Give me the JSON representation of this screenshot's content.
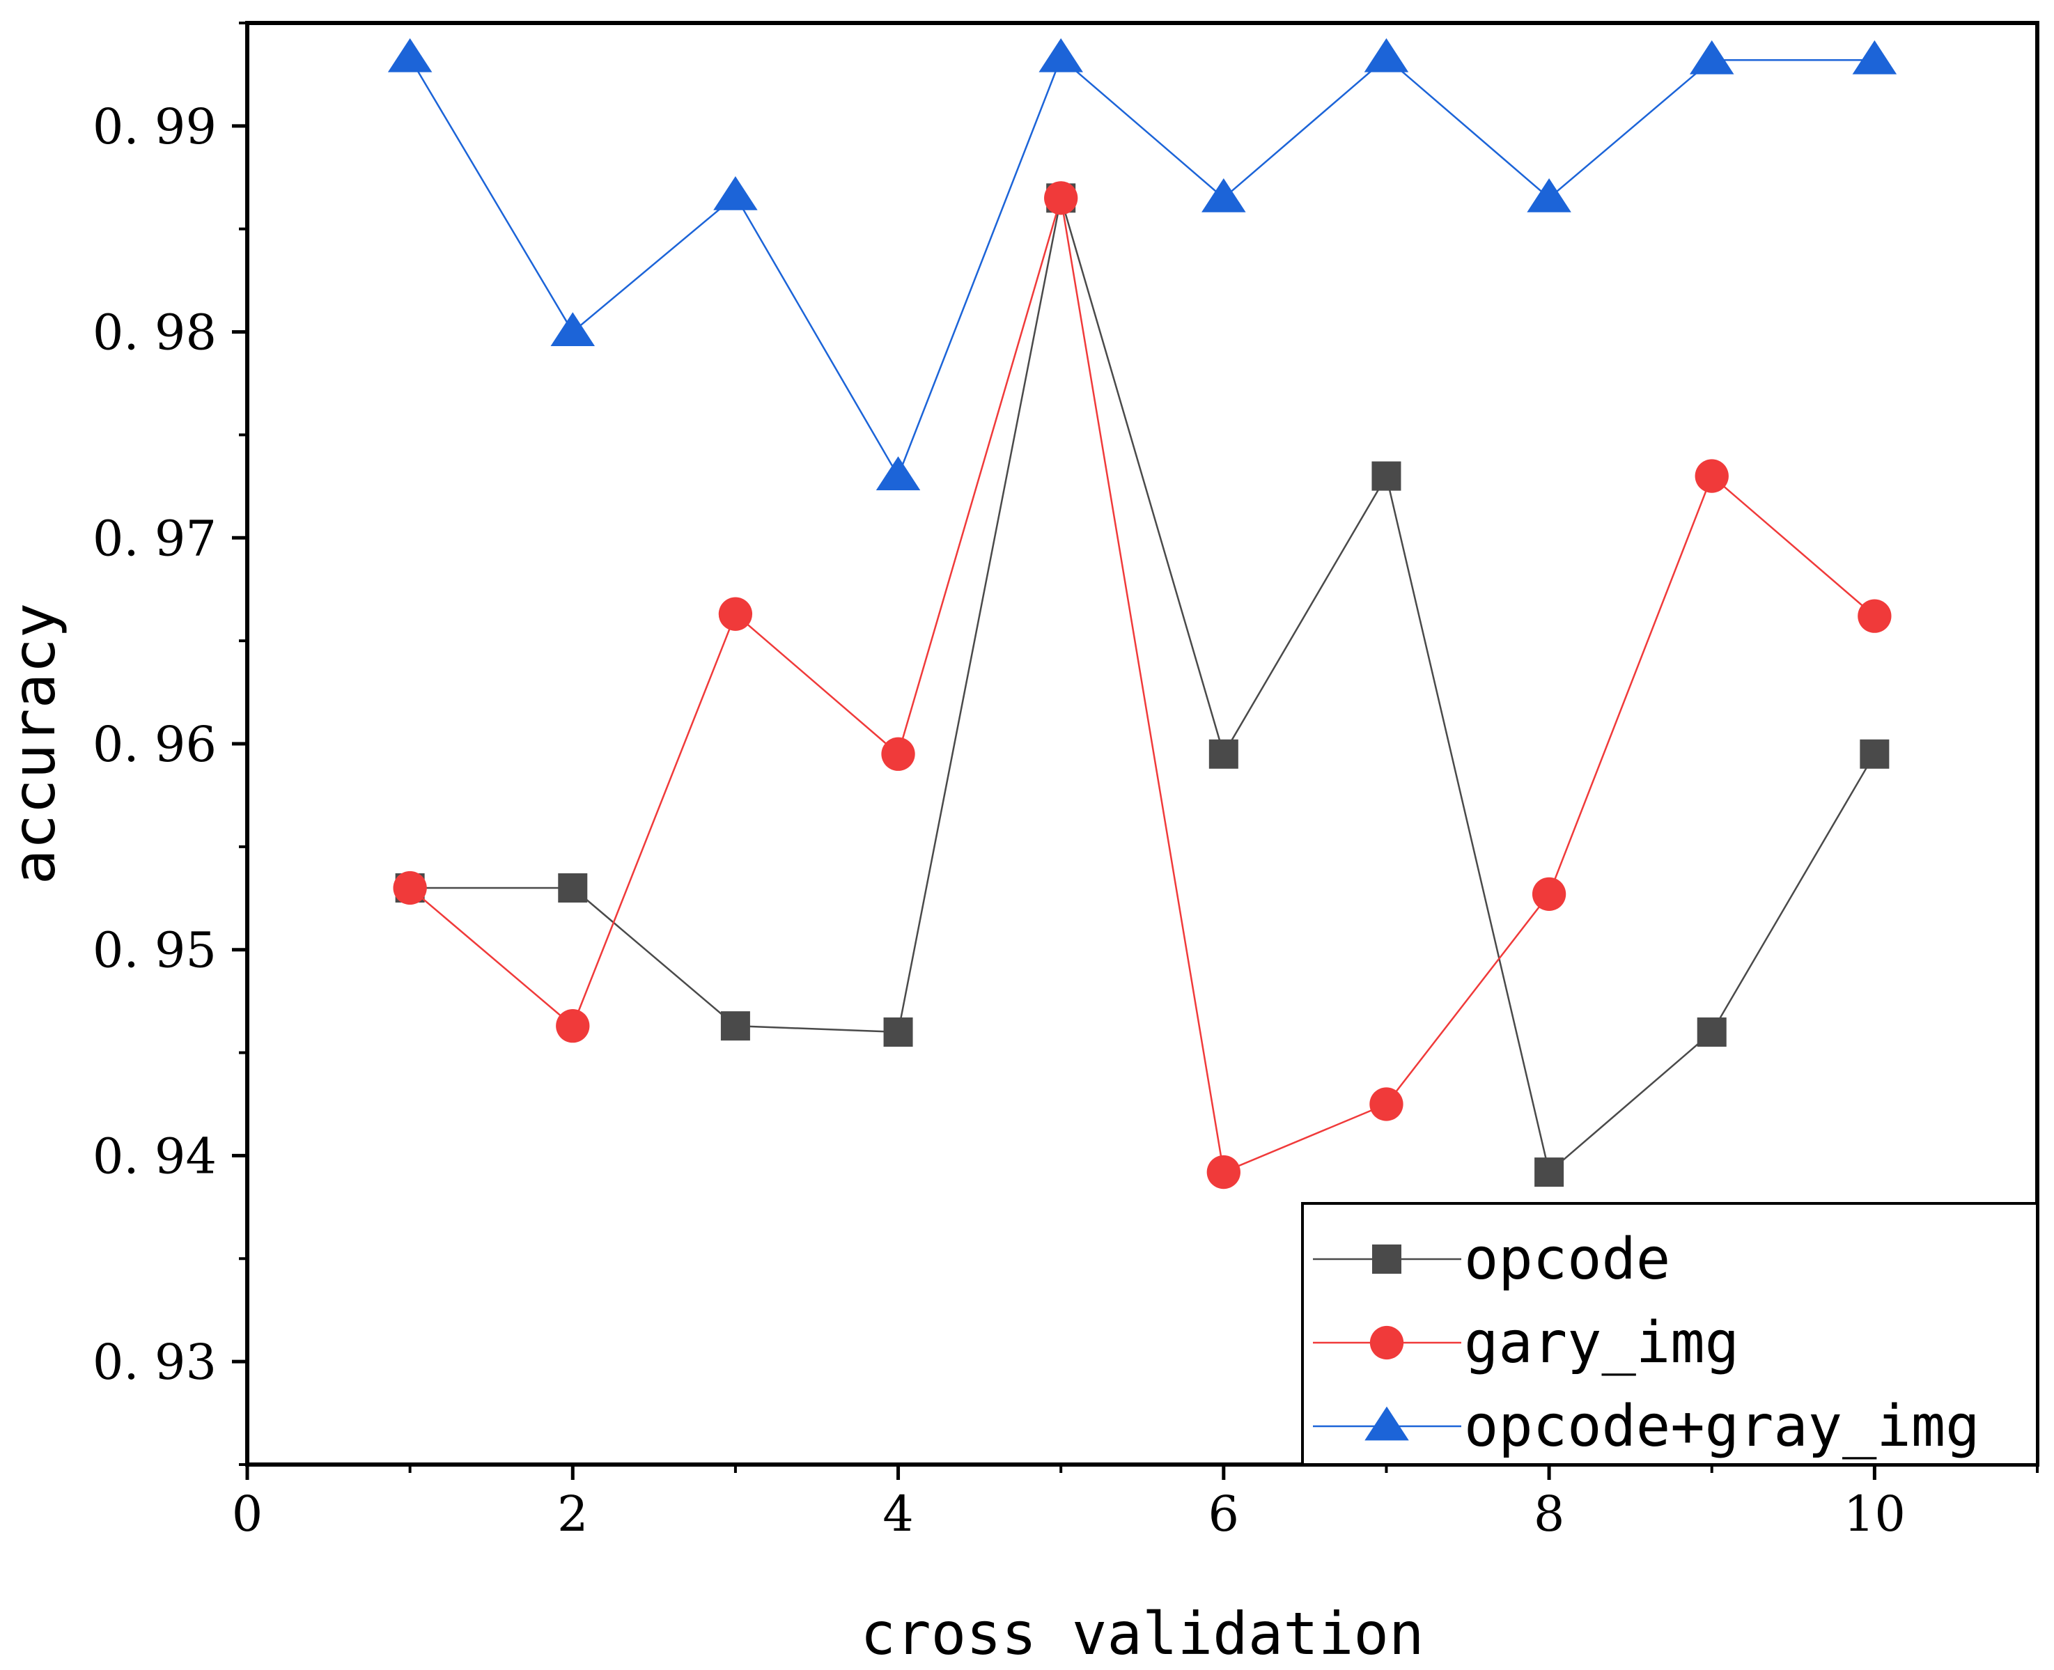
{
  "chart_data": {
    "type": "line",
    "title": "",
    "xlabel": "cross validation",
    "ylabel": "accuracy",
    "xlim": [
      0,
      11
    ],
    "ylim": [
      0.925,
      0.995
    ],
    "x_ticks": [
      0,
      2,
      4,
      6,
      8,
      10
    ],
    "x_tick_labels": [
      "0",
      "2",
      "4",
      "6",
      "8",
      "10"
    ],
    "y_ticks": [
      0.93,
      0.94,
      0.95,
      0.96,
      0.97,
      0.98,
      0.99
    ],
    "y_tick_labels": [
      "0. 93",
      "0. 94",
      "0. 95",
      "0. 96",
      "0. 97",
      "0. 98",
      "0. 99"
    ],
    "grid": false,
    "legend_position": "bottom-right",
    "x": [
      1,
      2,
      3,
      4,
      5,
      6,
      7,
      8,
      9,
      10
    ],
    "series": [
      {
        "name": "opcode",
        "color": "#4a4a4a",
        "marker": "square",
        "values": [
          0.953,
          0.953,
          0.9463,
          0.946,
          0.9865,
          0.9595,
          0.973,
          0.9392,
          0.946,
          0.9595
        ]
      },
      {
        "name": "gary_img",
        "color": "#f03a3a",
        "marker": "circle",
        "values": [
          0.953,
          0.9463,
          0.9663,
          0.9595,
          0.9865,
          0.9392,
          0.9425,
          0.9527,
          0.973,
          0.9662
        ]
      },
      {
        "name": "opcode+gray_img",
        "color": "#1c64d8",
        "marker": "triangle",
        "values": [
          0.9933,
          0.98,
          0.9866,
          0.973,
          0.9933,
          0.9865,
          0.9933,
          0.9865,
          0.9932,
          0.9932
        ]
      }
    ]
  }
}
